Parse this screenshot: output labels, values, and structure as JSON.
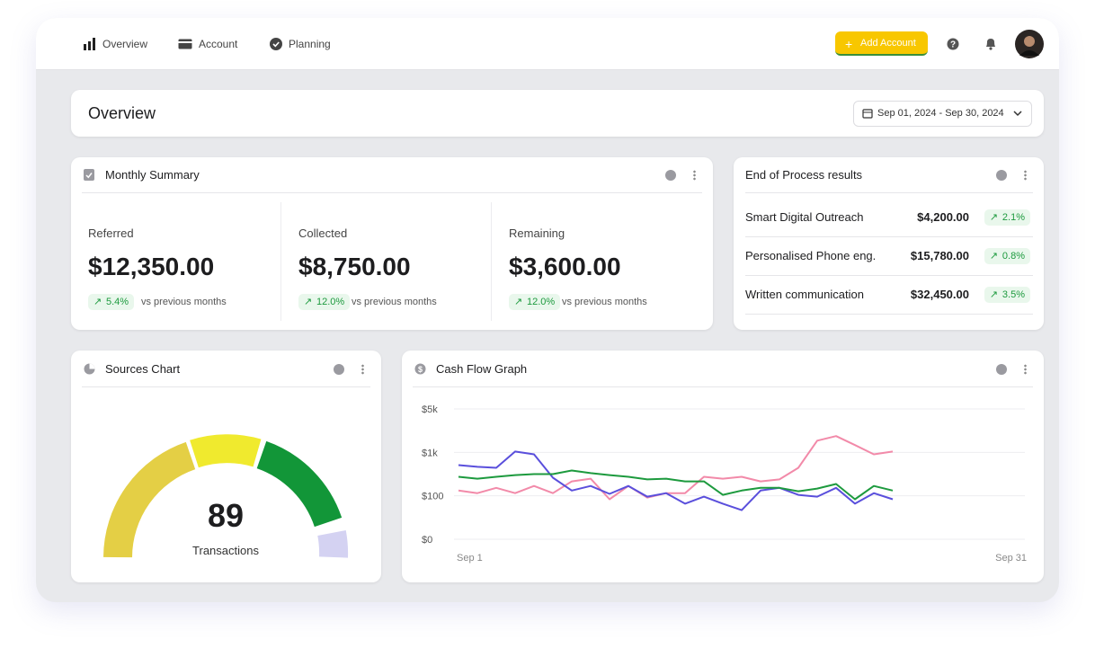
{
  "nav": {
    "items": [
      "Overview",
      "Account",
      "Planning"
    ],
    "add_account": "Add Account"
  },
  "overview": {
    "title": "Overview",
    "date_range": "Sep 01, 2024 - Sep 30, 2024"
  },
  "monthly_summary": {
    "title": "Monthly Summary",
    "items": [
      {
        "label": "Referred",
        "amount": "$12,350.00",
        "change": "5.4%",
        "note": "vs previous months"
      },
      {
        "label": "Collected",
        "amount": "$8,750.00",
        "change": "12.0%",
        "note": "vs previous months"
      },
      {
        "label": "Remaining",
        "amount": "$3,600.00",
        "change": "12.0%",
        "note": "vs previous months"
      }
    ]
  },
  "end_of_process": {
    "title": "End of Process results",
    "rows": [
      {
        "name": "Smart Digital Outreach",
        "amount": "$4,200.00",
        "change": "2.1%"
      },
      {
        "name": "Personalised Phone eng.",
        "amount": "$15,780.00",
        "change": "0.8%"
      },
      {
        "name": "Written communication",
        "amount": "$32,450.00",
        "change": "3.5%"
      }
    ]
  },
  "sources_chart": {
    "title": "Sources Chart",
    "value": 89,
    "label": "Transactions"
  },
  "cash_flow": {
    "title": "Cash Flow Graph",
    "chart_data": {
      "type": "line",
      "x": [
        1,
        2,
        3,
        4,
        5,
        6,
        7,
        8,
        9,
        10,
        11,
        12,
        13,
        14,
        15,
        16,
        17,
        18,
        19,
        20,
        21,
        22,
        23,
        24
      ],
      "xlim": [
        1,
        31
      ],
      "xticks": [
        {
          "value": 1,
          "label": "Sep 1"
        },
        {
          "value": 31,
          "label": "Sep 31"
        }
      ],
      "ylim": [
        0,
        5000
      ],
      "yticks": [
        {
          "value": 0,
          "label": "$0"
        },
        {
          "value": 100,
          "label": "$100"
        },
        {
          "value": 1000,
          "label": "$1k"
        },
        {
          "value": 5000,
          "label": "$5k"
        }
      ],
      "grid": true,
      "series": [
        {
          "color": "#f28aa9",
          "values": [
            210,
            155,
            265,
            155,
            305,
            155,
            400,
            455,
            92,
            305,
            96,
            155,
            155,
            494,
            455,
            494,
            400,
            440,
            680,
            2080,
            2500,
            1670,
            960,
            1080
          ]
        },
        {
          "color": "#5a4fdc",
          "values": [
            737,
            700,
            680,
            1080,
            960,
            475,
            210,
            305,
            140,
            305,
            98,
            155,
            82,
            98,
            82,
            67,
            210,
            265,
            120,
            98,
            265,
            82,
            155,
            92
          ]
        },
        {
          "color": "#1d9a3e",
          "values": [
            494,
            455,
            494,
            530,
            550,
            550,
            625,
            570,
            530,
            494,
            440,
            455,
            400,
            400,
            119,
            210,
            265,
            265,
            195,
            250,
            345,
            92,
            305,
            210
          ]
        }
      ]
    }
  }
}
